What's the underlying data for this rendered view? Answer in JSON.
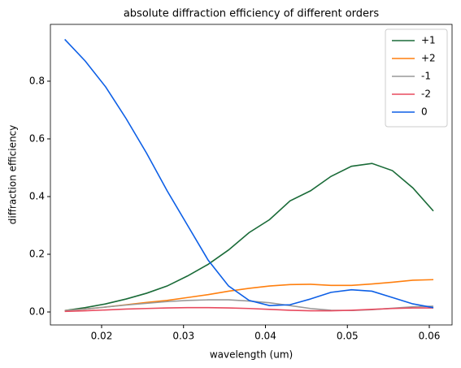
{
  "chart_data": {
    "type": "line",
    "title": "absolute diffraction efficiency of different orders",
    "xlabel": "wavelength (um)",
    "ylabel": "diffraction efficiency",
    "x": [
      0.0155,
      0.018,
      0.0205,
      0.023,
      0.0255,
      0.028,
      0.0305,
      0.033,
      0.0355,
      0.038,
      0.0405,
      0.043,
      0.0455,
      0.048,
      0.0505,
      0.053,
      0.0555,
      0.058,
      0.0605
    ],
    "series": [
      {
        "name": "+1",
        "color": "#1a6b38",
        "values": [
          0.005,
          0.015,
          0.028,
          0.045,
          0.065,
          0.09,
          0.125,
          0.165,
          0.215,
          0.275,
          0.32,
          0.385,
          0.42,
          0.47,
          0.505,
          0.515,
          0.49,
          0.43,
          0.35
        ]
      },
      {
        "name": "+2",
        "color": "#ff7f0e",
        "values": [
          0.005,
          0.01,
          0.017,
          0.025,
          0.033,
          0.04,
          0.05,
          0.06,
          0.072,
          0.082,
          0.09,
          0.095,
          0.096,
          0.092,
          0.092,
          0.097,
          0.103,
          0.11,
          0.112
        ]
      },
      {
        "name": "-1",
        "color": "#999999",
        "values": [
          0.005,
          0.01,
          0.017,
          0.024,
          0.03,
          0.036,
          0.04,
          0.042,
          0.042,
          0.038,
          0.032,
          0.022,
          0.012,
          0.006,
          0.005,
          0.008,
          0.013,
          0.018,
          0.02
        ]
      },
      {
        "name": "-2",
        "color": "#e84a5f",
        "values": [
          0.002,
          0.004,
          0.007,
          0.01,
          0.012,
          0.014,
          0.015,
          0.015,
          0.014,
          0.012,
          0.009,
          0.006,
          0.004,
          0.004,
          0.006,
          0.009,
          0.012,
          0.014,
          0.014
        ]
      },
      {
        "name": "0",
        "color": "#0d5fe6",
        "values": [
          0.945,
          0.87,
          0.78,
          0.67,
          0.55,
          0.42,
          0.3,
          0.18,
          0.09,
          0.04,
          0.022,
          0.025,
          0.045,
          0.068,
          0.077,
          0.072,
          0.05,
          0.028,
          0.015
        ]
      }
    ],
    "xlim": [
      0.01375,
      0.06278
    ],
    "ylim": [
      -0.045,
      0.997
    ],
    "xticks": [
      0.02,
      0.03,
      0.04,
      0.05,
      0.06
    ],
    "yticks": [
      {
        "value": 0,
        "label": "0.0"
      },
      0.2,
      0.4,
      0.6,
      0.8
    ],
    "legend": "upper right"
  }
}
